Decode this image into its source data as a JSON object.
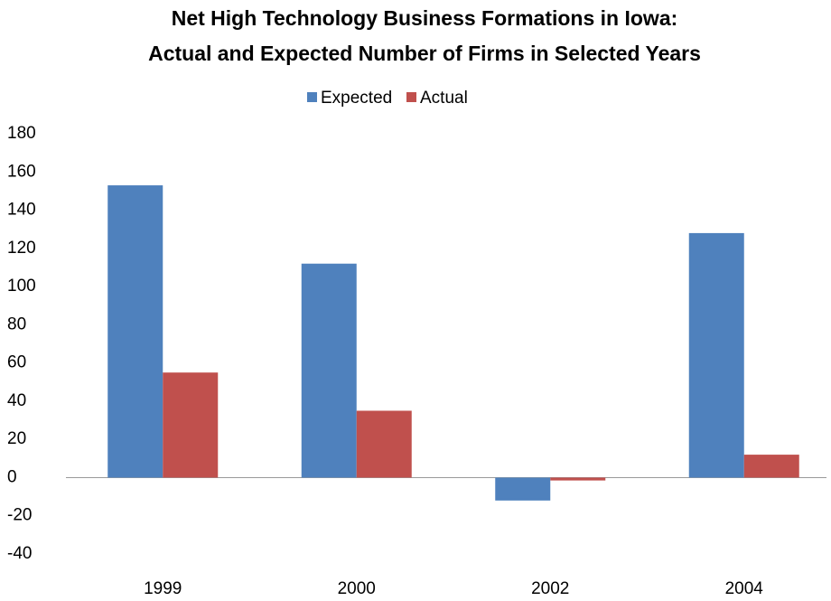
{
  "chart_data": {
    "type": "bar",
    "title": [
      "Net High Technology Business Formations in Iowa:",
      "Actual and Expected  Number of Firms in Selected Years"
    ],
    "categories": [
      "1999",
      "2000",
      "2002",
      "2004"
    ],
    "series": [
      {
        "name": "Expected",
        "color": "#4f81bd",
        "values": [
          153,
          112,
          -12,
          128
        ]
      },
      {
        "name": "Actual",
        "color": "#c0504d",
        "values": [
          55,
          35,
          -1.5,
          12
        ]
      }
    ],
    "ylim": [
      -40,
      180
    ],
    "yticks": [
      -40,
      -20,
      0,
      20,
      40,
      60,
      80,
      100,
      120,
      140,
      160,
      180
    ],
    "grid": false,
    "legend": "top"
  }
}
